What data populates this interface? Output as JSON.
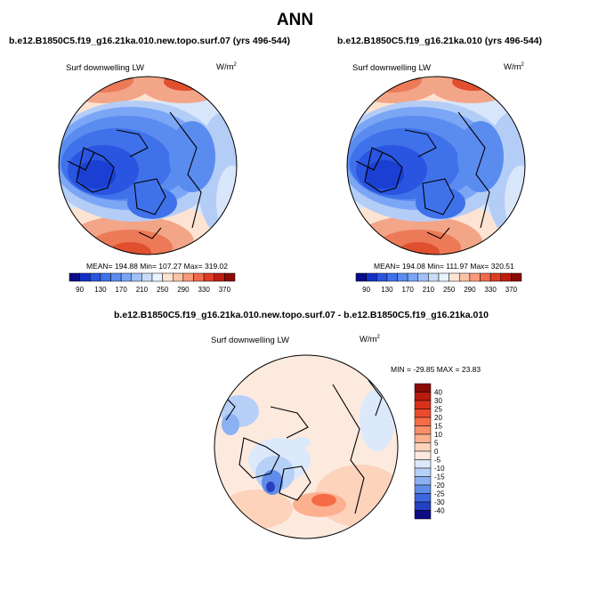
{
  "title": "ANN",
  "chart_data": [
    {
      "type": "heatmap",
      "projection": "polar stereographic (north pole)",
      "case": "b.e12.B1850C5.f19_g16.21ka.010.new.topo.surf.07 (yrs 496-544)",
      "variable": "Surf downwelling LW",
      "units": "W/m",
      "units_exp": "2",
      "stats": "MEAN= 194.88  Min= 107.27  Max= 319.02",
      "mean": 194.88,
      "min": 107.27,
      "max": 319.02,
      "colorbar_ticks": [
        "90",
        "130",
        "170",
        "210",
        "250",
        "290",
        "330",
        "370"
      ],
      "levels": [
        90,
        110,
        130,
        150,
        170,
        190,
        210,
        230,
        250,
        270,
        290,
        310,
        330,
        350,
        370
      ],
      "colors": [
        "#0a0a8a",
        "#1530c8",
        "#2a55e0",
        "#3f72ea",
        "#5a8cf0",
        "#7ba6f5",
        "#a0c0f8",
        "#c8dcfa",
        "#eaf2fd",
        "#fde3d2",
        "#fcc3a7",
        "#f89a7b",
        "#f06a4d",
        "#e03b24",
        "#c01c10",
        "#8a0a05"
      ]
    },
    {
      "type": "heatmap",
      "projection": "polar stereographic (north pole)",
      "case": "b.e12.B1850C5.f19_g16.21ka.010 (yrs 496-544)",
      "variable": "Surf downwelling LW",
      "units": "W/m",
      "units_exp": "2",
      "stats": "MEAN= 194.08  Min= 111.97  Max= 320.51",
      "mean": 194.08,
      "min": 111.97,
      "max": 320.51,
      "colorbar_ticks": [
        "90",
        "130",
        "170",
        "210",
        "250",
        "290",
        "330",
        "370"
      ],
      "levels": [
        90,
        110,
        130,
        150,
        170,
        190,
        210,
        230,
        250,
        270,
        290,
        310,
        330,
        350,
        370
      ],
      "colors": [
        "#0a0a8a",
        "#1530c8",
        "#2a55e0",
        "#3f72ea",
        "#5a8cf0",
        "#7ba6f5",
        "#a0c0f8",
        "#c8dcfa",
        "#eaf2fd",
        "#fde3d2",
        "#fcc3a7",
        "#f89a7b",
        "#f06a4d",
        "#e03b24",
        "#c01c10",
        "#8a0a05"
      ]
    },
    {
      "type": "heatmap",
      "projection": "polar stereographic (north pole)",
      "case": "b.e12.B1850C5.f19_g16.21ka.010.new.topo.surf.07 - b.e12.B1850C5.f19_g16.21ka.010",
      "variable": "Surf downwelling LW",
      "units": "W/m",
      "units_exp": "2",
      "stats": "MIN = -29.85 MAX =  23.83",
      "min": -29.85,
      "max": 23.83,
      "colorbar_ticks": [
        "40",
        "30",
        "25",
        "20",
        "15",
        "10",
        "5",
        "0",
        "-5",
        "-10",
        "-15",
        "-20",
        "-25",
        "-30",
        "-40"
      ],
      "colors": [
        "#8a0a05",
        "#b81a0d",
        "#d8301c",
        "#ec4a2c",
        "#f56b46",
        "#f98e6a",
        "#fbb190",
        "#fdd3bc",
        "#fdeadf",
        "#dbe9fb",
        "#b6d0f7",
        "#8cb1f2",
        "#5f8ce9",
        "#3d67dc",
        "#2540c0",
        "#0c0c85"
      ]
    }
  ]
}
